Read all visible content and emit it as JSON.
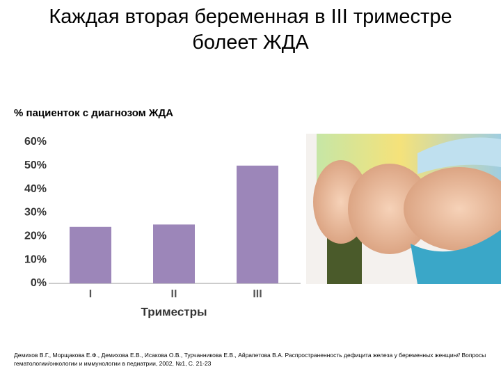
{
  "chart_data": {
    "type": "bar",
    "title": "Каждая вторая беременная в III триместре болеет ЖДА",
    "subtitle": "% пациенток с диагнозом ЖДА",
    "x_label": "Триместры",
    "categories": [
      "I",
      "II",
      "III"
    ],
    "values": [
      24,
      25,
      50
    ],
    "color": "#9c86b9",
    "ylim": [
      0,
      60
    ],
    "yticks": [
      {
        "value": 0,
        "label": "0%"
      },
      {
        "value": 10,
        "label": "10%"
      },
      {
        "value": 20,
        "label": "20%"
      },
      {
        "value": 30,
        "label": "30%"
      },
      {
        "value": 40,
        "label": "40%"
      },
      {
        "value": 50,
        "label": "50%"
      },
      {
        "value": 60,
        "label": "60%"
      }
    ],
    "grid": false,
    "source": "Демихов В.Г., Морщакова Е.Ф., Демихова Е.В., Исакова О.В., Турчанникова Е.В., Айрапетова В.А. Распространенность дефицита железа у беременных женщин// Вопросы гематологии/онкологии и иммунологии в педиатрии, 2002, №1, С. 21-23"
  }
}
